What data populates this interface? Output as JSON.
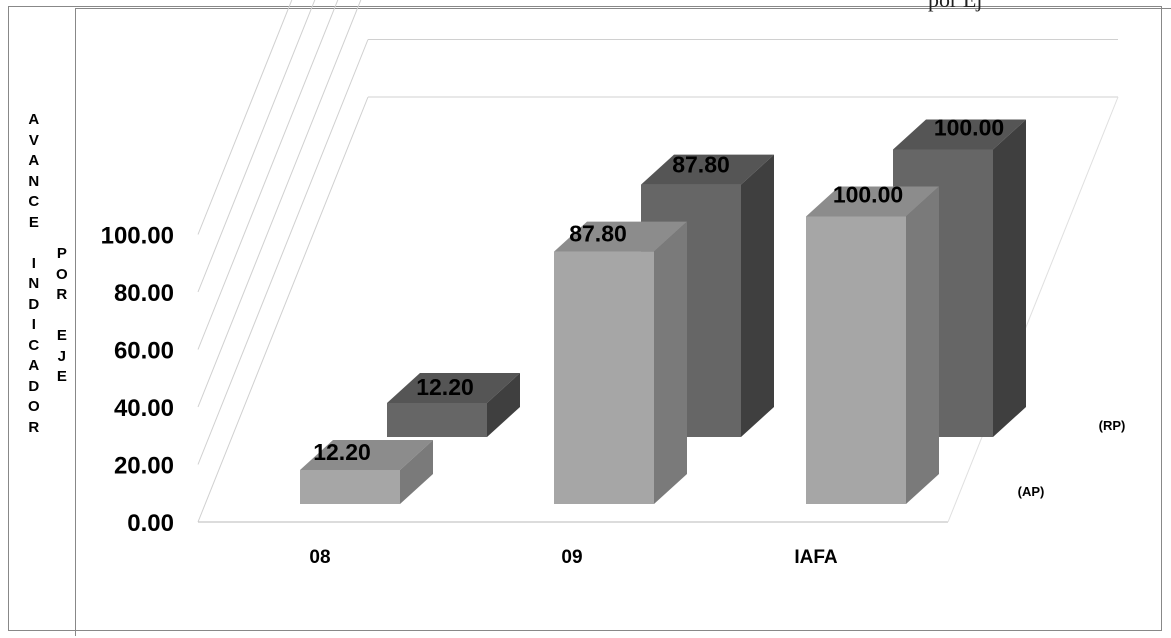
{
  "chart_data": {
    "type": "bar",
    "ylabel_primary": "AVANCE INDICADOR",
    "ylabel_secondary": "POR EJE",
    "categories": [
      "08",
      "09",
      "IAFA"
    ],
    "series": [
      {
        "name": "(AP)",
        "values": [
          12.2,
          87.8,
          100.0
        ],
        "color": "#a6a6a6"
      },
      {
        "name": "(RP)",
        "values": [
          12.2,
          87.8,
          100.0
        ],
        "color": "#666666"
      }
    ],
    "ylim": [
      0,
      100
    ],
    "yticks": [
      "0.00",
      "20.00",
      "40.00",
      "60.00",
      "80.00",
      "100.00"
    ],
    "data_labels": [
      [
        "12.20",
        "87.80",
        "100.00"
      ],
      [
        "12.20",
        "87.80",
        "100.00"
      ]
    ],
    "grid": true,
    "legend_position": "right",
    "style": "3d-column"
  },
  "top_fragment": "por Ej"
}
